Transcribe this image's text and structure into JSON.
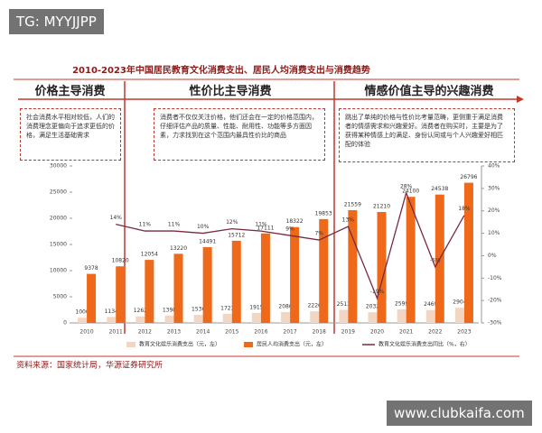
{
  "chart_data": {
    "type": "bar",
    "title": "2010-2023年中国居民教育文化消费支出、居民人均消费支出与消费趋势",
    "sections": [
      {
        "title": "价格主导消费",
        "text": "社会消费水平相对较低，人们的消费理念更偏向于追求更低的价格，满足生活基础需求"
      },
      {
        "title": "性价比主导消费",
        "text": "消费者不仅仅关注价格，他们还会在一定的价格范围内，仔细评估产品的质量、性能、耐用性、功能等多方面因素，力求找到在这个范围内最具性价比的商品"
      },
      {
        "title": "情感价值主导的兴趣消费",
        "text": "跳出了单纯的价格与性价比考量范畴，更侧重于满足消费者的情感需求和兴趣爱好。消费者在购买时，主要是为了获得某种情感上的满足、身份认同或与个人兴趣爱好相匹配的体验"
      }
    ],
    "categories": [
      "2010",
      "2011",
      "2012",
      "2013",
      "2014",
      "2015",
      "2016",
      "2017",
      "2018",
      "2019",
      "2020",
      "2021",
      "2022",
      "2023"
    ],
    "series": [
      {
        "name": "教育文化娱乐消费支出（元，左）",
        "type": "bar",
        "color": "#f3d6c1",
        "values": [
          1000,
          1134,
          1262,
          1398,
          1536,
          1723,
          1915,
          2086,
          2226,
          2513,
          2032,
          2599,
          2469,
          2904
        ]
      },
      {
        "name": "居民人均消费支出（元，左）",
        "type": "bar",
        "color": "#ee6a1a",
        "values": [
          9378,
          10820,
          12054,
          13220,
          14491,
          15712,
          17111,
          18322,
          19853,
          21559,
          21210,
          24100,
          24538,
          26796
        ]
      },
      {
        "name": "教育文化娱乐消费支出同比（%，右）",
        "type": "line",
        "axis": "y2",
        "color": "#7a2a3c",
        "values": [
          null,
          14,
          11,
          11,
          10,
          12,
          11,
          9,
          7,
          13,
          -19,
          28,
          -5,
          18
        ],
        "value_labels": [
          null,
          "14%",
          "11%",
          "11%",
          "10%",
          "12%",
          "11%",
          "9%",
          "7%",
          "13%",
          "-19%",
          "28%",
          "-5%",
          "18%"
        ]
      }
    ],
    "ylim": [
      0,
      30000
    ],
    "yticks": [
      0,
      5000,
      10000,
      15000,
      20000,
      25000,
      30000
    ],
    "y2lim": [
      -30,
      40
    ],
    "y2ticks": [
      {
        "value": -30,
        "label": "-30%"
      },
      {
        "value": -20,
        "label": "-20%"
      },
      {
        "value": -10,
        "label": "-10%"
      },
      {
        "value": 0,
        "label": "0%"
      },
      {
        "value": 10,
        "label": "10%"
      },
      {
        "value": 20,
        "label": "20%"
      },
      {
        "value": 30,
        "label": "30%"
      },
      {
        "value": 40,
        "label": "40%"
      }
    ],
    "source": "资料来源：国家统计局，华源证券研究所"
  },
  "watermarks": [
    "TG: MYYJJPP",
    "www.clubkaifa.com"
  ]
}
